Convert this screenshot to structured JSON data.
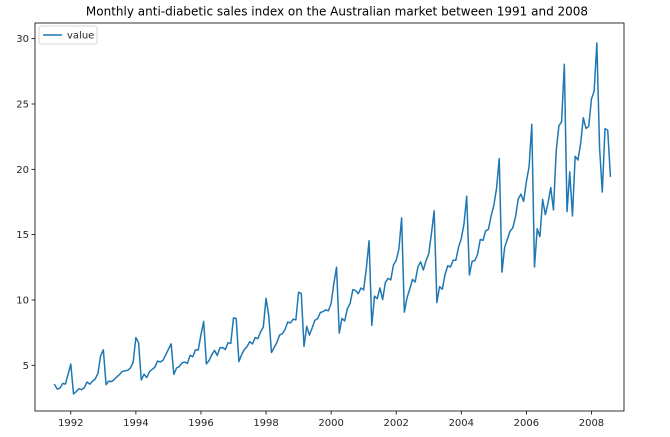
{
  "chart_data": {
    "type": "line",
    "title": "Monthly anti-diabetic sales index on the Australian market between 1991 and 2008",
    "xlabel": "",
    "ylabel": "",
    "xlim": [
      1990.9,
      2009.0
    ],
    "ylim": [
      1.5,
      31.2
    ],
    "x_ticks": [
      1992,
      1994,
      1996,
      1998,
      2000,
      2002,
      2004,
      2006,
      2008
    ],
    "x_tick_labels": [
      "1992",
      "1994",
      "1996",
      "1998",
      "2000",
      "2002",
      "2004",
      "2006",
      "2008"
    ],
    "y_ticks": [
      5,
      10,
      15,
      20,
      25,
      30
    ],
    "y_tick_labels": [
      "5",
      "10",
      "15",
      "20",
      "25",
      "30"
    ],
    "grid": false,
    "legend": {
      "placement": "top-left",
      "entries": [
        "value"
      ]
    },
    "line_color": "#1f77b4",
    "x_start": 1991.5,
    "x_step": 0.08333,
    "series": [
      {
        "name": "value",
        "values": [
          3.53,
          3.18,
          3.25,
          3.61,
          3.56,
          4.31,
          5.09,
          2.81,
          2.99,
          3.2,
          3.13,
          3.29,
          3.72,
          3.55,
          3.78,
          3.95,
          4.37,
          5.73,
          6.18,
          3.52,
          3.79,
          3.75,
          3.9,
          4.12,
          4.3,
          4.53,
          4.58,
          4.61,
          4.8,
          5.24,
          7.12,
          6.72,
          3.87,
          4.32,
          4.06,
          4.51,
          4.68,
          4.85,
          5.32,
          5.25,
          5.38,
          5.79,
          6.22,
          6.64,
          4.3,
          4.79,
          4.9,
          5.18,
          5.25,
          5.14,
          5.77,
          5.65,
          6.19,
          6.17,
          7.34,
          8.35,
          5.11,
          5.36,
          5.81,
          6.14,
          5.75,
          6.34,
          6.35,
          6.21,
          6.73,
          6.67,
          8.63,
          8.57,
          5.28,
          5.81,
          6.21,
          6.43,
          6.81,
          6.63,
          7.12,
          7.04,
          7.56,
          7.93,
          10.12,
          8.8,
          5.98,
          6.36,
          6.74,
          7.31,
          7.42,
          7.73,
          8.31,
          8.24,
          8.53,
          8.47,
          10.59,
          10.49,
          6.44,
          7.98,
          7.31,
          7.85,
          8.44,
          8.57,
          9.03,
          9.11,
          9.24,
          9.17,
          9.73,
          11.26,
          12.5,
          7.46,
          8.59,
          8.39,
          9.34,
          9.73,
          10.78,
          10.73,
          10.48,
          10.91,
          10.77,
          12.45,
          14.53,
          8.05,
          10.29,
          10.1,
          10.92,
          10.03,
          11.33,
          11.65,
          11.54,
          12.68,
          13.03,
          13.9,
          16.28,
          9.07,
          10.18,
          10.83,
          11.57,
          11.38,
          12.52,
          12.92,
          12.29,
          13.0,
          13.53,
          15.09,
          16.83,
          9.8,
          11.02,
          10.82,
          11.92,
          12.62,
          12.52,
          13.04,
          13.04,
          14.05,
          14.69,
          15.82,
          17.94,
          11.91,
          12.96,
          13.0,
          13.49,
          14.63,
          14.56,
          15.3,
          15.39,
          16.43,
          17.23,
          18.53,
          20.82,
          12.13,
          14.03,
          14.66,
          15.28,
          15.51,
          16.37,
          17.73,
          18.1,
          17.54,
          19.05,
          20.21,
          23.45,
          12.52,
          15.45,
          14.85,
          17.7,
          16.53,
          17.43,
          18.61,
          16.89,
          21.41,
          23.33,
          23.64,
          28.04,
          16.76,
          19.79,
          16.43,
          21.0,
          20.71,
          21.95,
          23.95,
          23.13,
          23.29,
          25.38,
          25.99,
          29.67,
          21.65,
          18.26,
          23.11,
          23.0,
          19.46
        ]
      }
    ]
  }
}
